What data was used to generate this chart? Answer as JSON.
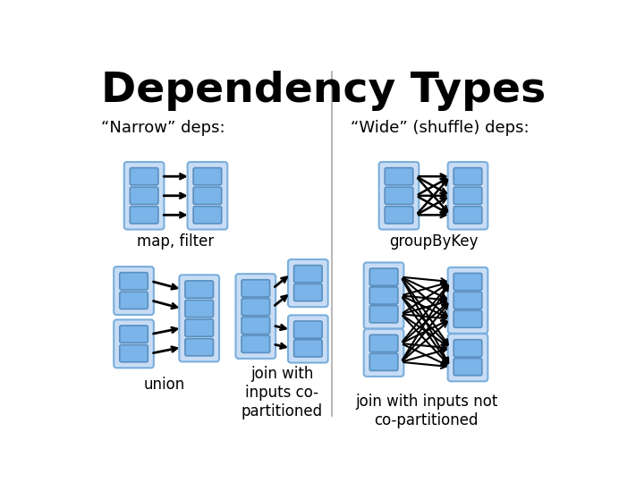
{
  "title": "Dependency Types",
  "narrow_label": "“Narrow” deps:",
  "wide_label": "“Wide” (shuffle) deps:",
  "bg_color": "#ffffff",
  "title_fontsize": 34,
  "label_fontsize": 13,
  "anno_fontsize": 12,
  "box_fill": "#7ab4e8",
  "box_edge": "#5a8fc0",
  "group_fill": "#c8ddf5",
  "group_edge": "#7aaedc",
  "divider_color": "#aaaaaa",
  "arrow_color": "#000000",
  "map_filter_label": "map, filter",
  "union_label": "union",
  "join_copart_label": "join with\ninputs co-\npartitioned",
  "groupbykey_label": "groupByKey",
  "join_notcopart_label": "join with inputs not\nco-partitioned"
}
